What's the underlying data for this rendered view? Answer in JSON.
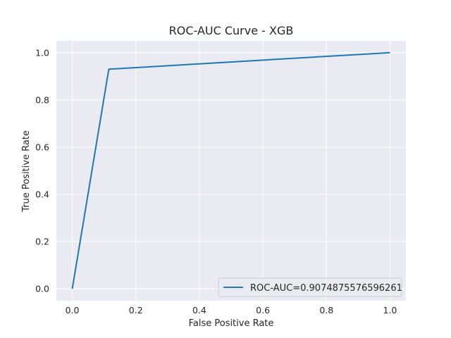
{
  "chart_data": {
    "type": "line",
    "title": "ROC-AUC Curve - XGB",
    "xlabel": "False Positive Rate",
    "ylabel": "True Positive Rate",
    "xlim": [
      -0.05,
      1.05
    ],
    "ylim": [
      -0.05,
      1.05
    ],
    "xticks": [
      0.0,
      0.2,
      0.4,
      0.6,
      0.8,
      1.0
    ],
    "yticks": [
      0.0,
      0.2,
      0.4,
      0.6,
      0.8,
      1.0
    ],
    "xtick_labels": [
      "0.0",
      "0.2",
      "0.4",
      "0.6",
      "0.8",
      "1.0"
    ],
    "ytick_labels": [
      "0.0",
      "0.2",
      "0.4",
      "0.6",
      "0.8",
      "1.0"
    ],
    "grid": true,
    "legend_position": "lower-right",
    "series": [
      {
        "name": "ROC-AUC=0.9074875576596261",
        "color": "#1f77b4",
        "x": [
          0.0,
          0.115,
          1.0
        ],
        "y": [
          0.0,
          0.93,
          1.0
        ]
      }
    ],
    "style": {
      "plot_background": "#eaeaf2",
      "grid_color": "#ffffff"
    }
  }
}
